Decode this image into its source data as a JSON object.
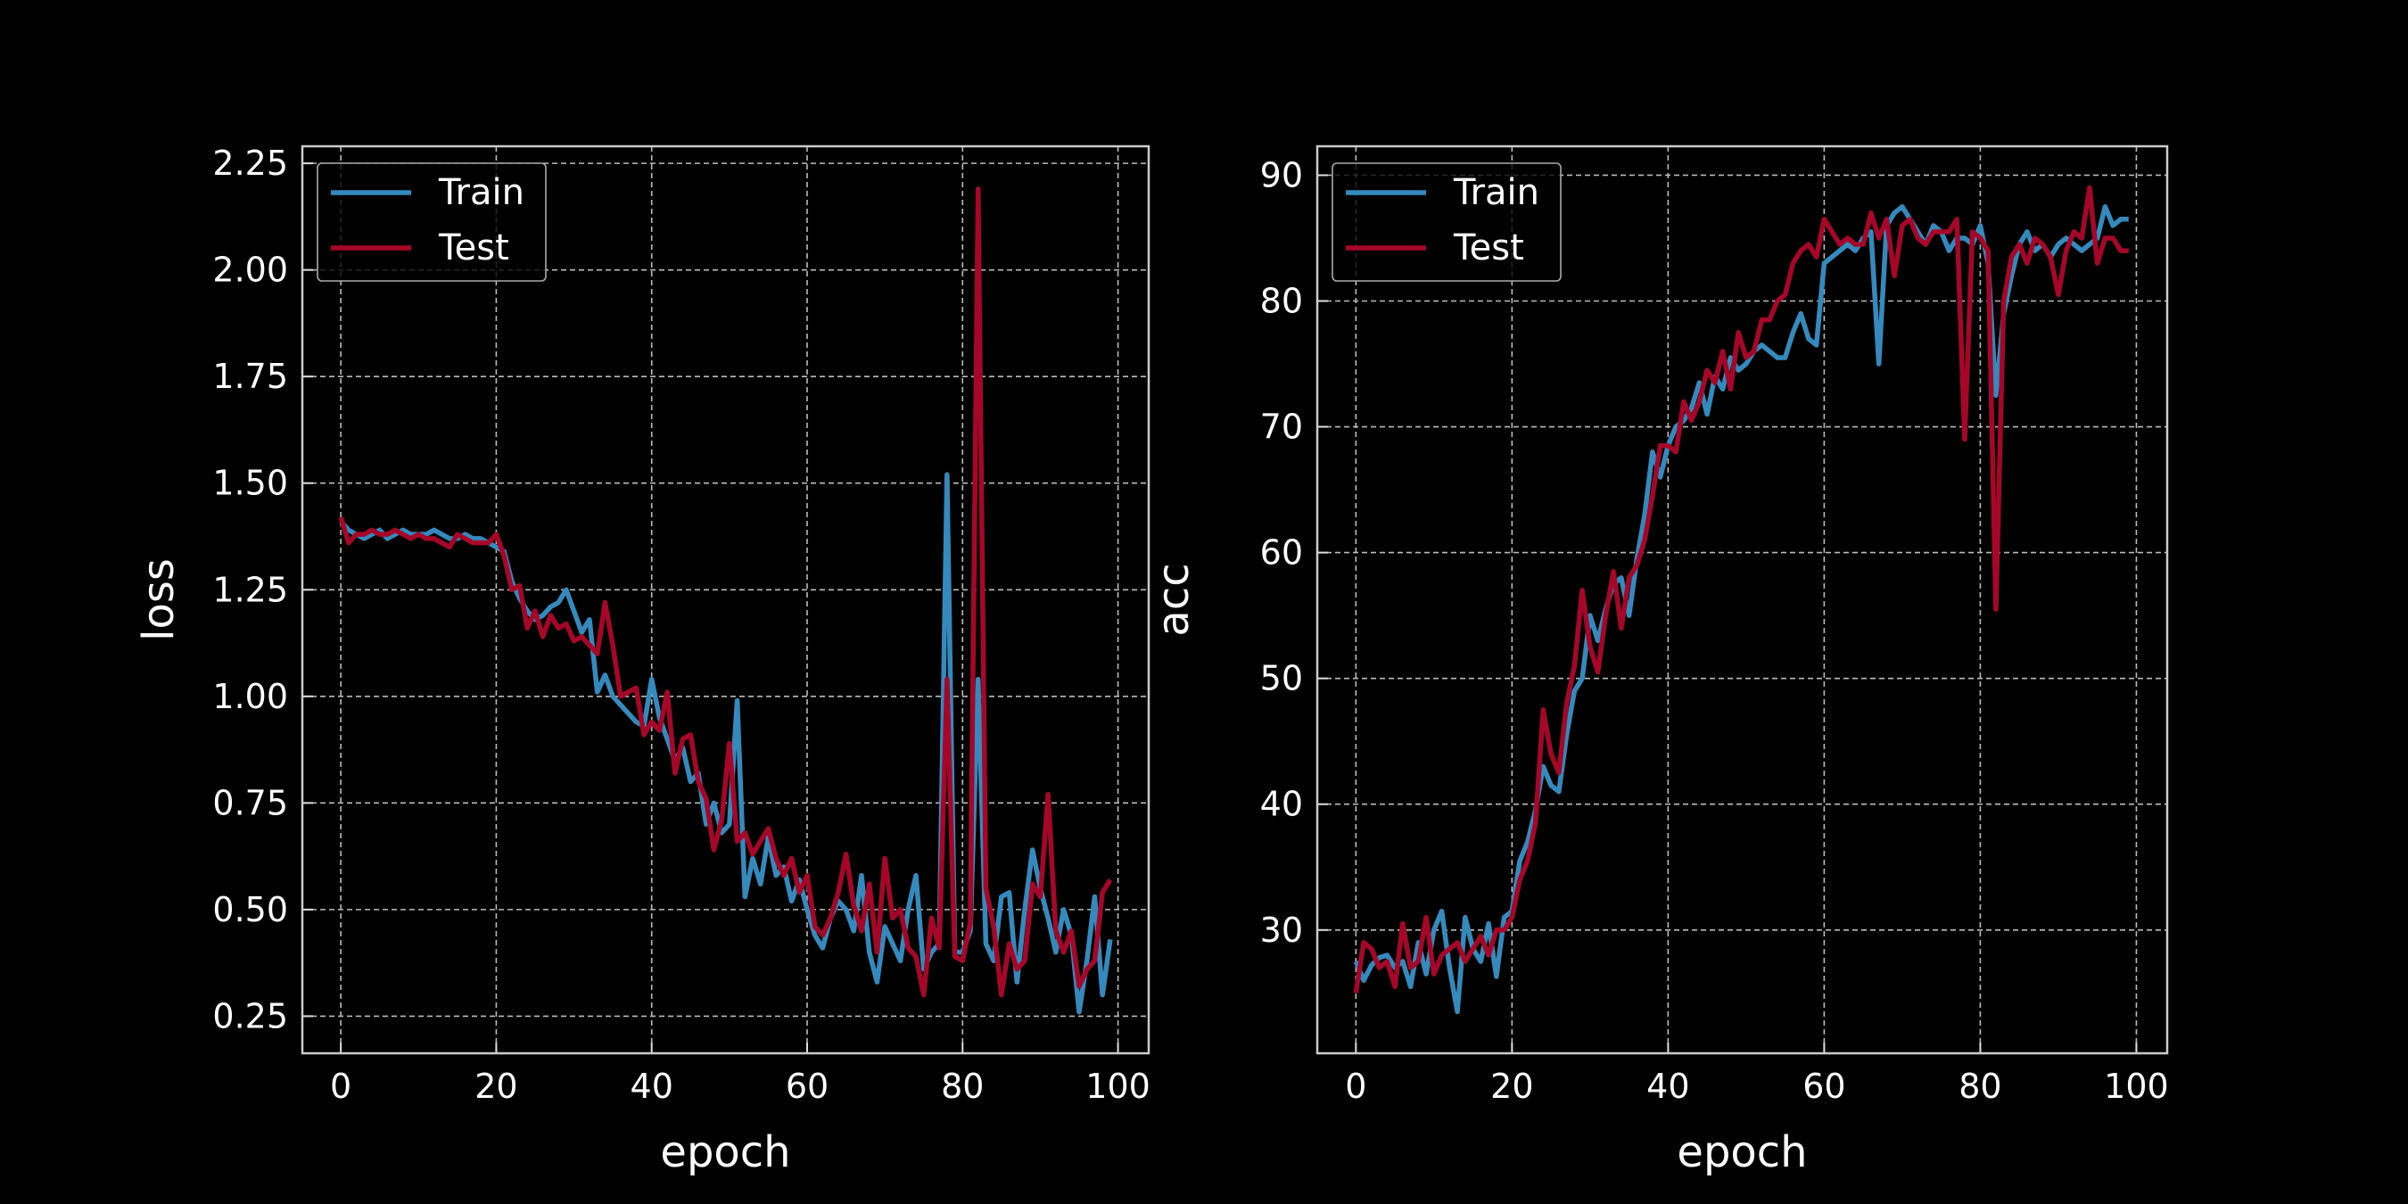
{
  "chart_data": [
    {
      "type": "line",
      "xlabel": "epoch",
      "ylabel": "loss",
      "legend": "upper left",
      "grid": true,
      "xlim": [
        -4.95,
        103.95
      ],
      "ylim": [
        0.163,
        2.29
      ],
      "xticks": [
        0,
        20,
        40,
        60,
        80,
        100
      ],
      "yticks": [
        0.25,
        {
          "value": 0.5,
          "label": "0.50"
        },
        0.75,
        {
          "value": 1,
          "label": "1.00"
        },
        1.25,
        {
          "value": 1.5,
          "label": "1.50"
        },
        1.75,
        {
          "value": 2,
          "label": "2.00"
        },
        2.25
      ],
      "x": [
        0,
        1,
        2,
        3,
        4,
        5,
        6,
        7,
        8,
        9,
        10,
        11,
        12,
        13,
        14,
        15,
        16,
        17,
        18,
        19,
        20,
        21,
        22,
        23,
        24,
        25,
        26,
        27,
        28,
        29,
        30,
        31,
        32,
        33,
        34,
        35,
        36,
        37,
        38,
        39,
        40,
        41,
        42,
        43,
        44,
        45,
        46,
        47,
        48,
        49,
        50,
        51,
        52,
        53,
        54,
        55,
        56,
        57,
        58,
        59,
        60,
        61,
        62,
        63,
        64,
        65,
        66,
        67,
        68,
        69,
        70,
        71,
        72,
        73,
        74,
        75,
        76,
        77,
        78,
        79,
        80,
        81,
        82,
        83,
        84,
        85,
        86,
        87,
        88,
        89,
        90,
        91,
        92,
        93,
        94,
        95,
        96,
        97,
        98,
        99
      ],
      "series": [
        {
          "name": "Train",
          "color": "#348ABD",
          "values": [
            1.41,
            1.39,
            1.38,
            1.37,
            1.38,
            1.39,
            1.37,
            1.38,
            1.39,
            1.38,
            1.38,
            1.38,
            1.39,
            1.38,
            1.37,
            1.37,
            1.38,
            1.37,
            1.37,
            1.36,
            1.35,
            1.34,
            1.27,
            1.23,
            1.2,
            1.18,
            1.19,
            1.21,
            1.22,
            1.25,
            1.2,
            1.15,
            1.18,
            1.01,
            1.05,
            1.0,
            0.98,
            0.96,
            0.94,
            0.93,
            1.04,
            0.95,
            0.9,
            0.85,
            0.88,
            0.8,
            0.82,
            0.7,
            0.75,
            0.68,
            0.7,
            0.99,
            0.53,
            0.62,
            0.56,
            0.67,
            0.58,
            0.6,
            0.52,
            0.57,
            0.5,
            0.44,
            0.41,
            0.48,
            0.52,
            0.5,
            0.45,
            0.58,
            0.4,
            0.33,
            0.46,
            0.42,
            0.38,
            0.5,
            0.58,
            0.36,
            0.4,
            0.42,
            1.52,
            0.4,
            0.4,
            0.45,
            1.04,
            0.42,
            0.38,
            0.53,
            0.54,
            0.33,
            0.5,
            0.64,
            0.55,
            0.48,
            0.4,
            0.5,
            0.44,
            0.26,
            0.38,
            0.53,
            0.3,
            0.43
          ]
        },
        {
          "name": "Test",
          "color": "#A60628",
          "values": [
            1.42,
            1.36,
            1.38,
            1.38,
            1.39,
            1.38,
            1.38,
            1.39,
            1.38,
            1.37,
            1.38,
            1.37,
            1.37,
            1.36,
            1.35,
            1.38,
            1.37,
            1.36,
            1.36,
            1.36,
            1.38,
            1.33,
            1.25,
            1.26,
            1.16,
            1.2,
            1.14,
            1.19,
            1.16,
            1.17,
            1.13,
            1.14,
            1.12,
            1.1,
            1.22,
            1.12,
            1.0,
            1.01,
            1.02,
            0.91,
            0.94,
            0.92,
            1.01,
            0.82,
            0.9,
            0.91,
            0.8,
            0.76,
            0.64,
            0.71,
            0.89,
            0.66,
            0.68,
            0.63,
            0.66,
            0.69,
            0.62,
            0.58,
            0.62,
            0.54,
            0.58,
            0.46,
            0.44,
            0.48,
            0.54,
            0.63,
            0.51,
            0.45,
            0.56,
            0.4,
            0.62,
            0.48,
            0.5,
            0.41,
            0.39,
            0.3,
            0.48,
            0.41,
            1.04,
            0.39,
            0.38,
            0.47,
            2.19,
            0.55,
            0.46,
            0.3,
            0.42,
            0.36,
            0.38,
            0.56,
            0.53,
            0.77,
            0.45,
            0.4,
            0.45,
            0.32,
            0.36,
            0.38,
            0.54,
            0.57
          ]
        }
      ]
    },
    {
      "type": "line",
      "xlabel": "epoch",
      "ylabel": "acc",
      "legend": "upper left",
      "grid": true,
      "xlim": [
        -4.95,
        103.95
      ],
      "ylim": [
        20.2,
        92.3
      ],
      "xticks": [
        0,
        20,
        40,
        60,
        80,
        100
      ],
      "yticks": [
        30,
        40,
        50,
        60,
        70,
        80,
        90
      ],
      "x": [
        0,
        1,
        2,
        3,
        4,
        5,
        6,
        7,
        8,
        9,
        10,
        11,
        12,
        13,
        14,
        15,
        16,
        17,
        18,
        19,
        20,
        21,
        22,
        23,
        24,
        25,
        26,
        27,
        28,
        29,
        30,
        31,
        32,
        33,
        34,
        35,
        36,
        37,
        38,
        39,
        40,
        41,
        42,
        43,
        44,
        45,
        46,
        47,
        48,
        49,
        50,
        51,
        52,
        53,
        54,
        55,
        56,
        57,
        58,
        59,
        60,
        61,
        62,
        63,
        64,
        65,
        66,
        67,
        68,
        69,
        70,
        71,
        72,
        73,
        74,
        75,
        76,
        77,
        78,
        79,
        80,
        81,
        82,
        83,
        84,
        85,
        86,
        87,
        88,
        89,
        90,
        91,
        92,
        93,
        94,
        95,
        96,
        97,
        98,
        99
      ],
      "series": [
        {
          "name": "Train",
          "color": "#348ABD",
          "values": [
            27.5,
            26.0,
            27.2,
            27.8,
            28.0,
            27.0,
            27.5,
            25.5,
            29.0,
            26.5,
            30.0,
            31.5,
            27.0,
            23.5,
            31.0,
            28.5,
            27.5,
            30.5,
            26.3,
            31.0,
            31.5,
            35.5,
            37.0,
            39.5,
            43.0,
            41.5,
            41.0,
            45.5,
            49.0,
            50.0,
            55.0,
            53.0,
            55.5,
            57.5,
            58.0,
            55.0,
            59.5,
            63.0,
            68.0,
            66.0,
            68.5,
            70.0,
            70.5,
            71.5,
            73.5,
            71.0,
            74.0,
            73.0,
            75.5,
            74.5,
            75.0,
            76.0,
            76.5,
            76.0,
            75.5,
            75.5,
            77.5,
            79.0,
            77.0,
            76.5,
            83.0,
            83.5,
            84.0,
            84.5,
            84.0,
            85.0,
            85.5,
            75.0,
            86.0,
            87.0,
            87.5,
            86.5,
            85.5,
            84.5,
            86.0,
            85.5,
            84.0,
            85.0,
            85.0,
            84.5,
            86.0,
            83.0,
            72.5,
            79.0,
            82.0,
            84.5,
            85.5,
            84.0,
            84.5,
            83.5,
            84.5,
            85.0,
            84.5,
            84.0,
            84.5,
            85.0,
            87.5,
            86.0,
            86.5,
            86.5
          ]
        },
        {
          "name": "Test",
          "color": "#A60628",
          "values": [
            25.0,
            29.0,
            28.5,
            27.0,
            27.5,
            25.5,
            30.5,
            27.0,
            27.5,
            31.0,
            26.5,
            28.0,
            28.5,
            29.0,
            27.5,
            28.5,
            29.5,
            28.0,
            30.0,
            30.0,
            31.0,
            34.0,
            35.5,
            38.5,
            47.5,
            44.0,
            42.5,
            48.0,
            51.0,
            57.0,
            52.5,
            50.5,
            55.0,
            58.5,
            54.0,
            58.0,
            59.0,
            61.0,
            64.5,
            68.5,
            68.5,
            68.0,
            72.0,
            70.5,
            72.0,
            74.5,
            73.5,
            76.0,
            73.0,
            77.5,
            75.5,
            76.0,
            78.5,
            78.5,
            80.0,
            80.5,
            83.0,
            84.0,
            84.5,
            83.5,
            86.5,
            85.5,
            84.5,
            85.0,
            84.5,
            84.5,
            87.0,
            85.0,
            86.5,
            82.0,
            86.0,
            86.5,
            85.0,
            84.5,
            85.5,
            85.5,
            85.5,
            86.5,
            69.0,
            85.5,
            85.0,
            84.0,
            55.5,
            80.0,
            83.5,
            84.5,
            83.0,
            85.0,
            84.5,
            83.5,
            80.5,
            84.0,
            85.5,
            85.0,
            89.0,
            83.0,
            85.0,
            85.0,
            84.0,
            84.0
          ]
        }
      ]
    }
  ]
}
